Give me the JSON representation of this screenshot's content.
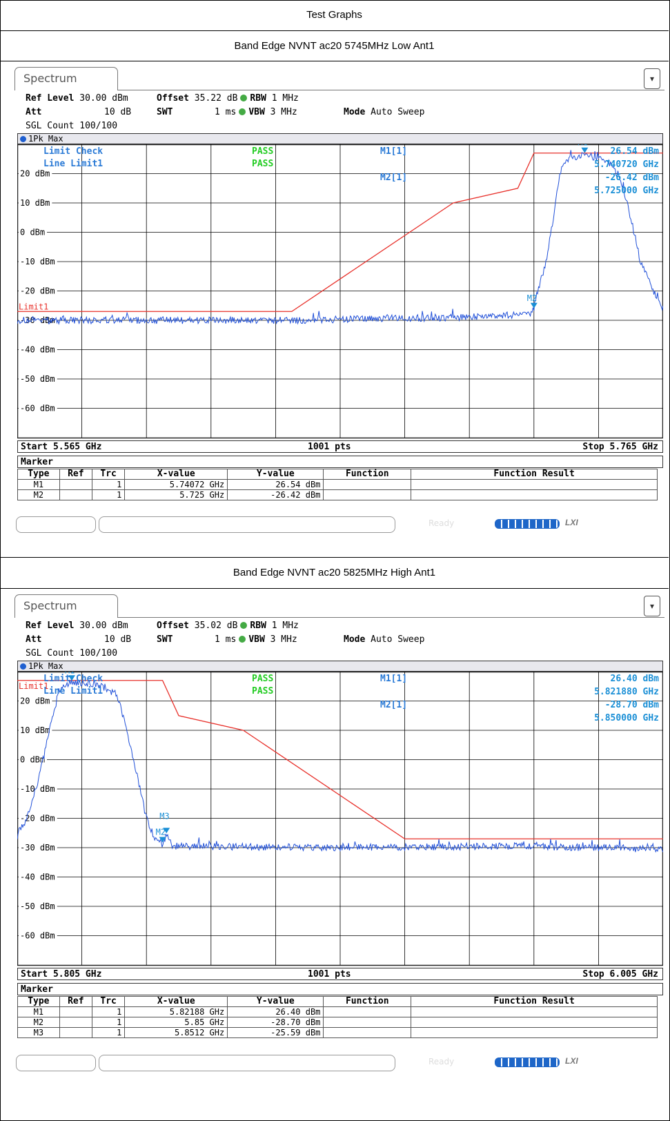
{
  "header": {
    "title": "Test Graphs"
  },
  "panels": [
    {
      "caption": "Band Edge NVNT ac20 5745MHz Low Ant1",
      "tab_label": "Spectrum",
      "settings": {
        "ref_level_label": "Ref Level",
        "ref_level_value": "30.00 dBm",
        "offset_label": "Offset",
        "offset_value": "35.22 dB",
        "rbw_label": "RBW",
        "rbw_value": "1 MHz",
        "att_label": "Att",
        "att_value": "10 dB",
        "swt_label": "SWT",
        "swt_value": "1 ms",
        "vbw_label": "VBW",
        "vbw_value": "3 MHz",
        "mode_label": "Mode",
        "mode_value": "Auto Sweep",
        "sgl_count": "SGL Count 100/100"
      },
      "trace_label": "1Pk Max",
      "start_label": "Start 5.565 GHz",
      "points_label": "1001 pts",
      "stop_label": "Stop 5.765 GHz",
      "marker_title": "Marker",
      "marker_columns": [
        "Type",
        "Ref",
        "Trc",
        "X-value",
        "Y-value",
        "Function",
        "Function Result"
      ],
      "markers": [
        {
          "type": "M1",
          "ref": "",
          "trc": "1",
          "x": "5.74072 GHz",
          "y": "26.54 dBm",
          "function": "",
          "result": ""
        },
        {
          "type": "M2",
          "ref": "",
          "trc": "1",
          "x": "5.725 GHz",
          "y": "-26.42 dBm",
          "function": "",
          "result": ""
        }
      ],
      "status": {
        "ready": "Ready",
        "lxi": "LXI"
      }
    },
    {
      "caption": "Band Edge NVNT ac20 5825MHz High Ant1",
      "tab_label": "Spectrum",
      "settings": {
        "ref_level_label": "Ref Level",
        "ref_level_value": "30.00 dBm",
        "offset_label": "Offset",
        "offset_value": "35.02 dB",
        "rbw_label": "RBW",
        "rbw_value": "1 MHz",
        "att_label": "Att",
        "att_value": "10 dB",
        "swt_label": "SWT",
        "swt_value": "1 ms",
        "vbw_label": "VBW",
        "vbw_value": "3 MHz",
        "mode_label": "Mode",
        "mode_value": "Auto Sweep",
        "sgl_count": "SGL Count 100/100"
      },
      "trace_label": "1Pk Max",
      "start_label": "Start 5.805 GHz",
      "points_label": "1001 pts",
      "stop_label": "Stop 6.005 GHz",
      "marker_title": "Marker",
      "marker_columns": [
        "Type",
        "Ref",
        "Trc",
        "X-value",
        "Y-value",
        "Function",
        "Function Result"
      ],
      "markers": [
        {
          "type": "M1",
          "ref": "",
          "trc": "1",
          "x": "5.82188 GHz",
          "y": "26.40 dBm",
          "function": "",
          "result": ""
        },
        {
          "type": "M2",
          "ref": "",
          "trc": "1",
          "x": "5.85 GHz",
          "y": "-28.70 dBm",
          "function": "",
          "result": ""
        },
        {
          "type": "M3",
          "ref": "",
          "trc": "1",
          "x": "5.8512 GHz",
          "y": "-25.59 dBm",
          "function": "",
          "result": ""
        }
      ],
      "status": {
        "ready": "Ready",
        "lxi": "LXI"
      }
    }
  ],
  "chart_data": [
    {
      "type": "line",
      "xlim": [
        5.565,
        5.765
      ],
      "ylim": [
        -70,
        30
      ],
      "y_ticks": [
        20,
        10,
        0,
        -10,
        -20,
        -30,
        -40,
        -50,
        -60
      ],
      "y_tick_labels": [
        "20 dBm",
        "10 dBm",
        "0 dBm",
        "-10 dBm",
        "-20 dBm",
        "-30 dBm",
        "-40 dBm",
        "-50 dBm",
        "-60 dBm"
      ],
      "grid": true,
      "limit_label": "Limit1",
      "limit_check_label": "Limit Check",
      "limit_check_status": "PASS",
      "line_limit_label": "Line Limit1",
      "line_limit_status": "PASS",
      "limit_line": {
        "x": [
          5.565,
          5.65,
          5.7,
          5.72,
          5.725,
          5.765
        ],
        "y": [
          -27.0,
          -27.0,
          10.0,
          15.0,
          27.0,
          27.0
        ]
      },
      "trace_series": {
        "color": "#1f4fd8",
        "shape": [
          [
            5.565,
            -30
          ],
          [
            5.65,
            -30
          ],
          [
            5.7,
            -29
          ],
          [
            5.724,
            -28
          ],
          [
            5.725,
            -26.4
          ],
          [
            5.7255,
            -23
          ],
          [
            5.729,
            -9
          ],
          [
            5.731,
            5
          ],
          [
            5.733,
            20
          ],
          [
            5.735,
            25
          ],
          [
            5.7407,
            26.5
          ],
          [
            5.748,
            24.5
          ],
          [
            5.752,
            17
          ],
          [
            5.755,
            5
          ],
          [
            5.758,
            -10
          ],
          [
            5.762,
            -20
          ],
          [
            5.765,
            -26
          ]
        ]
      },
      "markers": [
        {
          "name": "M1",
          "x": 5.74072,
          "y": 26.54
        },
        {
          "name": "M2",
          "x": 5.725,
          "y": -26.42
        }
      ],
      "readouts": [
        {
          "label": "M1[1]",
          "y": "26.54 dBm",
          "x": "5.740720 GHz"
        },
        {
          "label": "M2[1]",
          "y": "-26.42 dBm",
          "x": "5.725000 GHz"
        }
      ]
    },
    {
      "type": "line",
      "xlim": [
        5.805,
        6.005
      ],
      "ylim": [
        -70,
        30
      ],
      "y_ticks": [
        20,
        10,
        0,
        -10,
        -20,
        -30,
        -40,
        -50,
        -60
      ],
      "y_tick_labels": [
        "20 dBm",
        "10 dBm",
        "0 dBm",
        "-10 dBm",
        "-20 dBm",
        "-30 dBm",
        "-40 dBm",
        "-50 dBm",
        "-60 dBm"
      ],
      "grid": true,
      "limit_label": "Limit1",
      "limit_check_label": "Limit Check",
      "limit_check_status": "PASS",
      "line_limit_label": "Line Limit1",
      "line_limit_status": "PASS",
      "limit_line": {
        "x": [
          5.805,
          5.85,
          5.855,
          5.875,
          5.925,
          6.005
        ],
        "y": [
          27.0,
          27.0,
          15.0,
          10.0,
          -27.0,
          -27.0
        ]
      },
      "trace_series": {
        "color": "#1f4fd8",
        "shape": [
          [
            5.805,
            -26
          ],
          [
            5.808,
            -20
          ],
          [
            5.812,
            -5
          ],
          [
            5.815,
            10
          ],
          [
            5.818,
            24
          ],
          [
            5.8219,
            26.4
          ],
          [
            5.83,
            25.5
          ],
          [
            5.836,
            22
          ],
          [
            5.839,
            10
          ],
          [
            5.842,
            -5
          ],
          [
            5.845,
            -20
          ],
          [
            5.848,
            -28
          ],
          [
            5.85,
            -28.7
          ],
          [
            5.8512,
            -25.59
          ],
          [
            5.853,
            -29.5
          ],
          [
            5.9,
            -30
          ],
          [
            5.96,
            -29.5
          ],
          [
            6.005,
            -30.5
          ]
        ]
      },
      "markers": [
        {
          "name": "M1",
          "x": 5.82188,
          "y": 26.4
        },
        {
          "name": "M2",
          "x": 5.85,
          "y": -28.7
        },
        {
          "name": "M3",
          "x": 5.8512,
          "y": -25.59
        }
      ],
      "readouts": [
        {
          "label": "M1[1]",
          "y": "26.40 dBm",
          "x": "5.821880 GHz"
        },
        {
          "label": "M2[1]",
          "y": "-28.70 dBm",
          "x": "5.850000 GHz"
        }
      ]
    }
  ]
}
